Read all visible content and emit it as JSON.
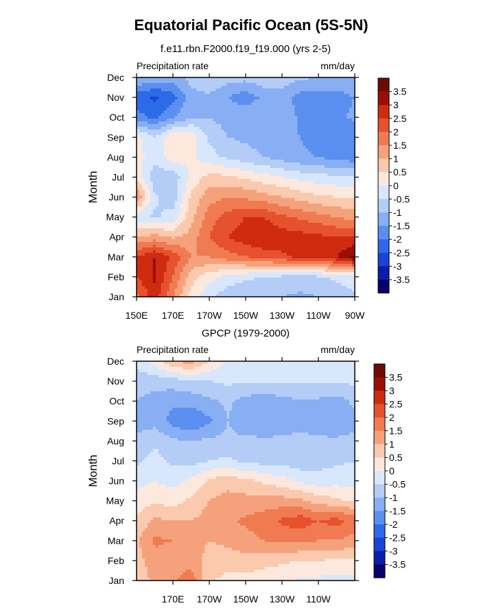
{
  "figure_title": "Equatorial Pacific Ocean (5S-5N)",
  "colors": {
    "levels_fill": [
      "#08036b",
      "#0a1ea7",
      "#1844d8",
      "#2d6ae8",
      "#5a8ff0",
      "#88aef3",
      "#b4cdf7",
      "#d8e7fb",
      "#fde8dd",
      "#fbc9ad",
      "#f5a27c",
      "#f07b52",
      "#e6512e",
      "#ce2b0f",
      "#9a0f05",
      "#6e0b04"
    ],
    "axis": "#000000"
  },
  "chart_data": [
    {
      "type": "heatmap",
      "panel": "top",
      "subtitle": "f.e11.rbn.F2000.f19_f19.000 (yrs 2-5)",
      "left_label": "Precipitation rate",
      "right_label": "mm/day",
      "xlabel": "",
      "ylabel": "Month",
      "xlim": [
        150,
        270
      ],
      "x_unit": "degrees east",
      "x_ticks": [
        150,
        170,
        190,
        210,
        230,
        250,
        270
      ],
      "x_ticklabels": [
        "150E",
        "170E",
        "170W",
        "150W",
        "130W",
        "110W",
        "90W"
      ],
      "y_ticklabels": [
        "Jan",
        "Feb",
        "Mar",
        "Apr",
        "May",
        "Jun",
        "Jul",
        "Aug",
        "Sep",
        "Oct",
        "Nov",
        "Dec"
      ],
      "grid": false,
      "colorbar_labels": [
        "3.5",
        "3",
        "2.5",
        "2",
        "1.5",
        "1",
        "0.5",
        "0",
        "-0.5",
        "-1",
        "-1.5",
        "-2",
        "-2.5",
        "-3",
        "-3.5"
      ],
      "x": [
        150,
        160,
        170,
        180,
        190,
        200,
        210,
        220,
        230,
        240,
        250,
        260,
        270
      ],
      "values": [
        [
          1.8,
          2.8,
          1.5,
          0.3,
          -0.4,
          -0.8,
          -0.9,
          -1.0,
          -1.0,
          -1.1,
          -1.0,
          -0.8,
          -0.6
        ],
        [
          2.5,
          3.1,
          2.0,
          0.7,
          0.2,
          -0.2,
          -0.4,
          -0.5,
          -0.6,
          -0.7,
          -0.6,
          -0.4,
          -0.2
        ],
        [
          2.5,
          3.0,
          2.4,
          1.5,
          1.5,
          1.8,
          2.0,
          2.2,
          2.4,
          2.6,
          2.7,
          3.0,
          3.7
        ],
        [
          1.0,
          1.2,
          0.9,
          1.2,
          2.0,
          2.5,
          2.8,
          3.0,
          2.8,
          2.7,
          2.6,
          2.5,
          2.5
        ],
        [
          -0.3,
          -0.6,
          -0.3,
          0.8,
          1.8,
          2.2,
          2.5,
          2.5,
          2.1,
          1.9,
          1.7,
          1.5,
          1.3
        ],
        [
          1.5,
          -0.4,
          -0.8,
          0.6,
          1.3,
          1.5,
          1.4,
          1.2,
          1.0,
          0.8,
          0.6,
          0.5,
          0.4
        ],
        [
          0.4,
          -0.9,
          -0.8,
          0.1,
          0.7,
          0.6,
          0.4,
          0.2,
          0.0,
          -0.2,
          -0.3,
          -0.4,
          -0.4
        ],
        [
          0.2,
          -0.3,
          0.3,
          0.1,
          -0.3,
          -0.6,
          -0.8,
          -1.0,
          -1.2,
          -1.4,
          -1.5,
          -1.7,
          -1.8
        ],
        [
          0.2,
          -0.5,
          0.5,
          0.3,
          -0.6,
          -1.0,
          -1.1,
          -1.2,
          -1.4,
          -1.5,
          -1.8,
          -1.9,
          -2.0
        ],
        [
          -1.8,
          -2.1,
          -1.6,
          -1.0,
          -1.0,
          -1.2,
          -1.1,
          -1.0,
          -1.1,
          -1.6,
          -1.7,
          -1.6,
          -1.4
        ],
        [
          -2.3,
          -2.6,
          -2.2,
          -1.2,
          -1.1,
          -1.5,
          -1.8,
          -1.4,
          -1.3,
          -1.7,
          -1.8,
          -1.7,
          -1.5
        ],
        [
          -1.0,
          -1.2,
          -1.3,
          -0.8,
          -0.5,
          -0.8,
          -0.8,
          -0.6,
          -0.7,
          -0.9,
          -1.0,
          -1.1,
          -1.1
        ]
      ]
    },
    {
      "type": "heatmap",
      "panel": "bottom",
      "subtitle": "GPCP (1979-2000)",
      "left_label": "Precipitation rate",
      "right_label": "mm/day",
      "xlabel": "",
      "ylabel": "Month",
      "xlim": [
        150,
        270
      ],
      "x_unit": "degrees east",
      "x_ticks": [
        170,
        190,
        210,
        230,
        250
      ],
      "x_ticklabels": [
        "170E",
        "170W",
        "150W",
        "130W",
        "110W"
      ],
      "y_ticklabels": [
        "Jan",
        "Feb",
        "Mar",
        "Apr",
        "May",
        "Jun",
        "Jul",
        "Aug",
        "Sep",
        "Oct",
        "Nov",
        "Dec"
      ],
      "grid": false,
      "colorbar_labels": [
        "3.5",
        "3",
        "2.5",
        "2",
        "1.5",
        "1",
        "0.5",
        "0",
        "-0.5",
        "-1",
        "-1.5",
        "-2",
        "-2.5",
        "-3",
        "-3.5"
      ],
      "x": [
        150,
        160,
        170,
        180,
        190,
        200,
        210,
        220,
        230,
        240,
        250,
        260,
        270
      ],
      "values": [
        [
          0.5,
          1.2,
          1.4,
          1.8,
          0.6,
          0.3,
          0.3,
          0.2,
          0.1,
          -0.1,
          -0.1,
          -0.2,
          -0.2
        ],
        [
          0.8,
          1.3,
          1.2,
          1.3,
          0.8,
          0.8,
          0.8,
          0.7,
          0.6,
          0.5,
          0.5,
          0.4,
          0.4
        ],
        [
          0.9,
          1.6,
          1.5,
          1.2,
          1.0,
          1.1,
          1.3,
          1.5,
          1.6,
          1.6,
          1.5,
          1.5,
          1.3
        ],
        [
          0.6,
          1.1,
          1.0,
          1.0,
          1.2,
          1.4,
          1.6,
          1.8,
          2.1,
          2.3,
          2.0,
          2.2,
          1.8
        ],
        [
          0.2,
          0.4,
          0.3,
          0.6,
          1.0,
          1.2,
          1.2,
          1.2,
          1.2,
          1.1,
          0.8,
          0.6,
          0.4
        ],
        [
          -0.2,
          0.0,
          -0.2,
          0.1,
          0.6,
          0.8,
          0.6,
          0.4,
          0.2,
          -0.1,
          -0.3,
          -0.2,
          -0.2
        ],
        [
          -0.6,
          -0.3,
          -0.6,
          -0.7,
          -0.5,
          -0.4,
          -0.6,
          -0.7,
          -0.7,
          -0.8,
          -0.7,
          -0.6,
          -0.5
        ],
        [
          -0.8,
          -0.6,
          -0.9,
          -1.0,
          -0.9,
          -0.9,
          -0.9,
          -0.9,
          -0.9,
          -0.9,
          -0.9,
          -0.9,
          -0.9
        ],
        [
          -1.3,
          -1.2,
          -1.7,
          -2.0,
          -1.6,
          -1.0,
          -1.3,
          -1.4,
          -1.3,
          -1.1,
          -1.3,
          -1.4,
          -1.1
        ],
        [
          -1.0,
          -1.2,
          -1.4,
          -1.3,
          -1.1,
          -0.9,
          -1.2,
          -1.3,
          -1.2,
          -1.0,
          -1.1,
          -1.2,
          -0.9
        ],
        [
          -0.8,
          -0.8,
          -0.7,
          -0.6,
          -0.5,
          -0.4,
          -0.4,
          -0.4,
          -0.4,
          -0.4,
          -0.4,
          -0.4,
          -0.4
        ],
        [
          -0.3,
          0.2,
          1.0,
          1.2,
          0.5,
          -0.1,
          -0.2,
          -0.2,
          -0.2,
          -0.3,
          -0.3,
          -0.3,
          -0.3
        ]
      ]
    }
  ]
}
